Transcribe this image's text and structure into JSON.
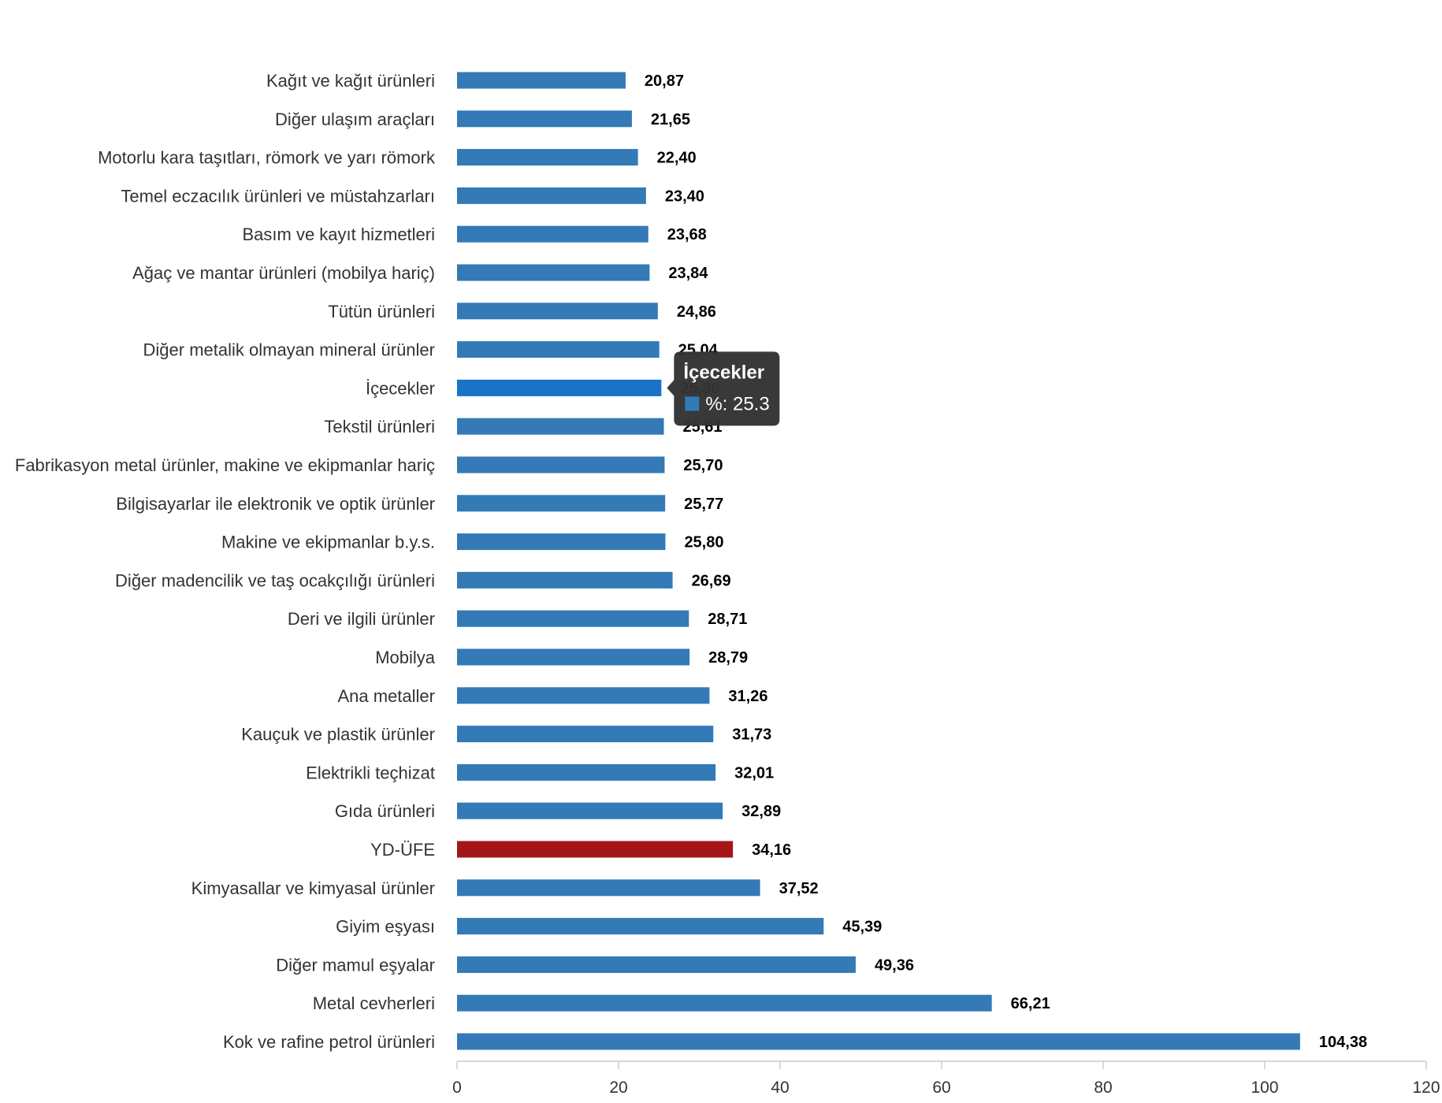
{
  "chart_data": {
    "type": "bar",
    "orientation": "horizontal",
    "categories": [
      "Kağıt ve kağıt ürünleri",
      "Diğer ulaşım araçları",
      "Motorlu kara taşıtları, römork ve yarı römork",
      "Temel eczacılık ürünleri ve müstahzarları",
      "Basım ve kayıt hizmetleri",
      "Ağaç ve mantar ürünleri (mobilya hariç)",
      "Tütün ürünleri",
      "Diğer metalik olmayan mineral ürünler",
      "İçecekler",
      "Tekstil ürünleri",
      "Fabrikasyon metal ürünler, makine ve ekipmanlar hariç",
      "Bilgisayarlar ile elektronik ve optik ürünler",
      "Makine ve ekipmanlar b.y.s.",
      "Diğer madencilik ve taş ocakçılığı ürünleri",
      "Deri ve ilgili ürünler",
      "Mobilya",
      "Ana metaller",
      "Kauçuk ve plastik ürünler",
      "Elektrikli teçhizat",
      "Gıda ürünleri",
      "YD-ÜFE",
      "Kimyasallar ve kimyasal ürünler",
      "Giyim eşyası",
      "Diğer mamul eşyalar",
      "Metal cevherleri",
      "Kok ve rafine petrol ürünleri"
    ],
    "values": [
      20.87,
      21.65,
      22.4,
      23.4,
      23.68,
      23.84,
      24.86,
      25.04,
      25.3,
      25.61,
      25.7,
      25.77,
      25.8,
      26.69,
      28.71,
      28.79,
      31.26,
      31.73,
      32.01,
      32.89,
      34.16,
      37.52,
      45.39,
      49.36,
      66.21,
      104.38
    ],
    "value_labels": [
      "20,87",
      "21,65",
      "22,40",
      "23,40",
      "23,68",
      "23,84",
      "24,86",
      "25,04",
      "25,30",
      "25,61",
      "25,70",
      "25,77",
      "25,80",
      "26,69",
      "28,71",
      "28,79",
      "31,26",
      "31,73",
      "32,01",
      "32,89",
      "34,16",
      "37,52",
      "45,39",
      "49,36",
      "66,21",
      "104,38"
    ],
    "xlim": [
      0,
      120
    ],
    "x_ticks": [
      0,
      20,
      40,
      60,
      80,
      100,
      120
    ],
    "x_tick_labels": [
      "0",
      "20",
      "40",
      "60",
      "80",
      "100",
      "120"
    ],
    "grid": false,
    "legend": "none",
    "highlight_category": "YD-ÜFE",
    "hovered_category": "İçecekler",
    "colors": {
      "bar": "#337ab7",
      "bar_hover": "#1a73c6",
      "highlight": "#a5161b",
      "axis": "#cccccc",
      "tooltip_bg": "#333333"
    }
  },
  "tooltip": {
    "title": "İçecekler",
    "series_label": "%",
    "value": "25.3"
  }
}
